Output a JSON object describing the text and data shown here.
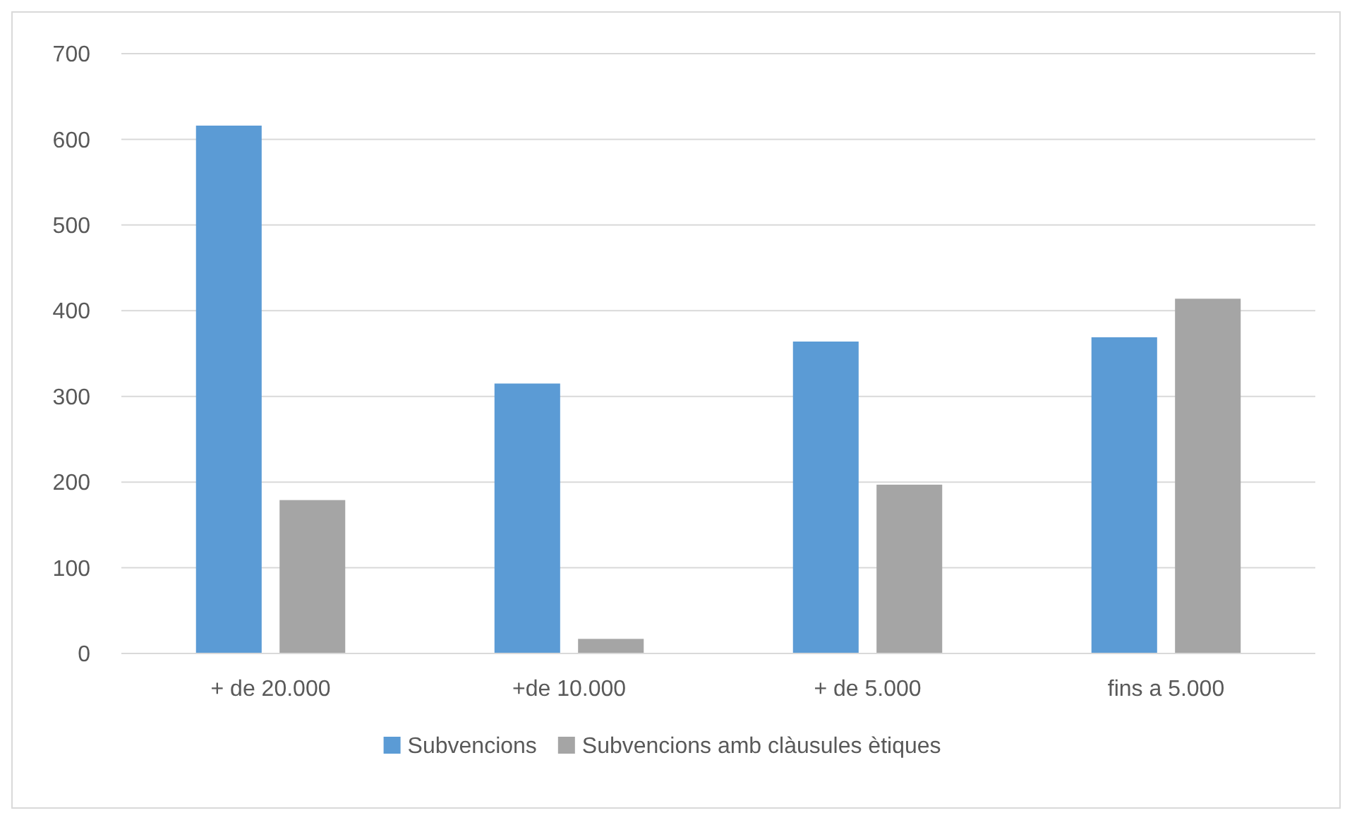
{
  "chart_data": {
    "type": "bar",
    "categories": [
      "+ de 20.000",
      "+de 10.000",
      "+ de 5.000",
      "fins a 5.000"
    ],
    "series": [
      {
        "name": "Subvencions",
        "color": "#5b9bd5",
        "values": [
          616,
          315,
          364,
          369
        ]
      },
      {
        "name": "Subvencions amb clàusules ètiques",
        "color": "#a5a5a5",
        "values": [
          179,
          17,
          197,
          414
        ]
      }
    ],
    "ylim": [
      0,
      700
    ],
    "yticks": [
      0,
      100,
      200,
      300,
      400,
      500,
      600,
      700
    ],
    "grid": "y",
    "legend": "bottom"
  }
}
